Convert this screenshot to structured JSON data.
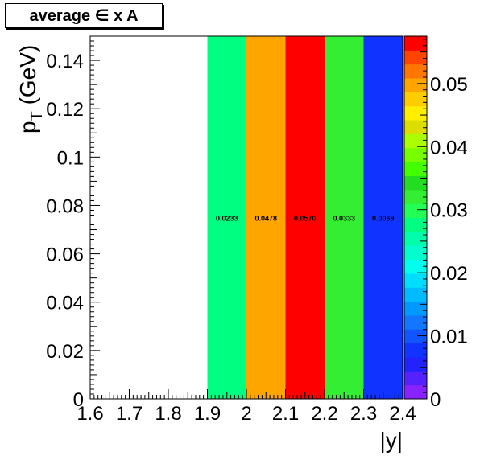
{
  "chart_data": {
    "type": "heatmap",
    "title": "average ∈ x A",
    "xlabel": "|y|",
    "ylabel": "p_T (GeV)",
    "xlabel_text": "|y|",
    "ylabel_main": "p",
    "ylabel_sub": "T",
    "ylabel_unit": " (GeV)",
    "xlim": [
      1.6,
      2.4
    ],
    "ylim": [
      0,
      0.15
    ],
    "zlim": [
      0,
      0.0575
    ],
    "x_ticks": [
      "1.6",
      "1.7",
      "1.8",
      "1.9",
      "2",
      "2.1",
      "2.2",
      "2.3",
      "2.4"
    ],
    "x_tick_values": [
      1.6,
      1.7,
      1.8,
      1.9,
      2.0,
      2.1,
      2.2,
      2.3,
      2.4
    ],
    "y_ticks": [
      "0",
      "0.02",
      "0.04",
      "0.06",
      "0.08",
      "0.1",
      "0.12",
      "0.14"
    ],
    "y_tick_values": [
      0,
      0.02,
      0.04,
      0.06,
      0.08,
      0.1,
      0.12,
      0.14
    ],
    "z_ticks": [
      "0",
      "0.01",
      "0.02",
      "0.03",
      "0.04",
      "0.05"
    ],
    "z_tick_values": [
      0,
      0.01,
      0.02,
      0.03,
      0.04,
      0.05
    ],
    "cells": [
      {
        "x0": 1.9,
        "x1": 2.0,
        "y0": 0,
        "y1": 0.15,
        "value": 0.0233,
        "label": "0.0233",
        "color": "#00ff80"
      },
      {
        "x0": 2.0,
        "x1": 2.1,
        "y0": 0,
        "y1": 0.15,
        "value": 0.0478,
        "label": "0.0478",
        "color": "#ffa500"
      },
      {
        "x0": 2.1,
        "x1": 2.2,
        "y0": 0,
        "y1": 0.15,
        "value": 0.057,
        "label": "0.0570",
        "color": "#ff0000"
      },
      {
        "x0": 2.2,
        "x1": 2.3,
        "y0": 0,
        "y1": 0.15,
        "value": 0.0333,
        "label": "0.0333",
        "color": "#33ee33"
      },
      {
        "x0": 2.3,
        "x1": 2.4,
        "y0": 0,
        "y1": 0.15,
        "value": 0.0069,
        "label": "0.0069",
        "color": "#1133ff"
      }
    ],
    "palette": [
      "#8822ff",
      "#5522ff",
      "#2222ff",
      "#1133ff",
      "#1155ff",
      "#1177ff",
      "#0099ff",
      "#00bbff",
      "#00ddff",
      "#00ffee",
      "#00ffcc",
      "#00ffaa",
      "#00ff80",
      "#22ff55",
      "#33ee33",
      "#22dd22",
      "#44ff00",
      "#77ff00",
      "#aaff00",
      "#dddd00",
      "#ffee00",
      "#ffcc00",
      "#ffa500",
      "#ff7700",
      "#ff4400",
      "#ff0000"
    ],
    "grid": false,
    "legend": "colorbar-right"
  }
}
